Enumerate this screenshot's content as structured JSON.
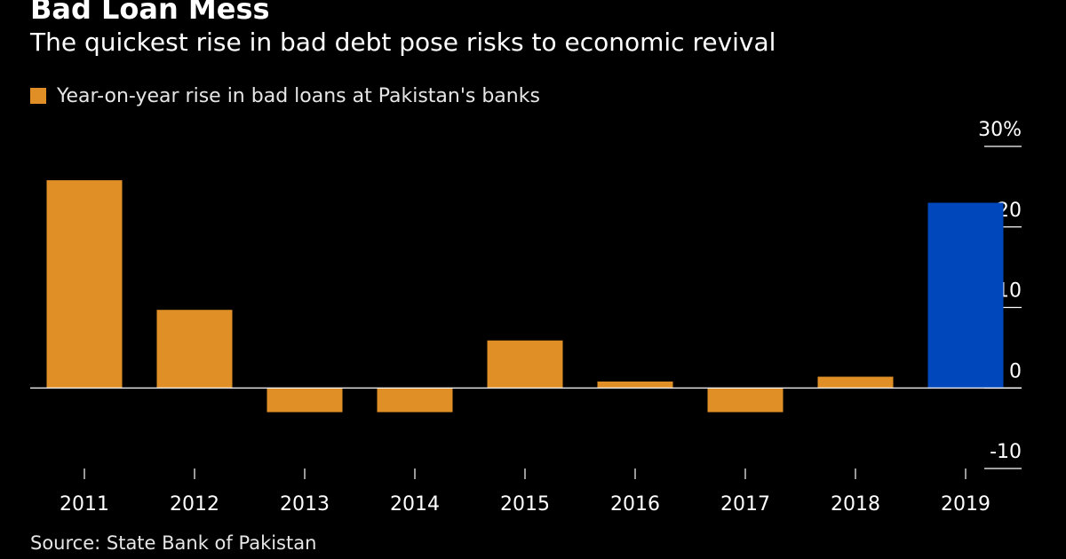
{
  "chart_data": {
    "type": "bar",
    "title": "Bad Loan Mess",
    "subtitle": "The quickest rise in bad debt pose risks to economic revival",
    "series": [
      {
        "name": "Year-on-year rise in bad loans at Pakistan's banks",
        "values": [
          25.8,
          9.7,
          -3.0,
          -3.0,
          5.9,
          0.8,
          -3.0,
          1.4,
          23.0
        ]
      }
    ],
    "categories": [
      "2011",
      "2012",
      "2013",
      "2014",
      "2015",
      "2016",
      "2017",
      "2018",
      "2019"
    ],
    "highlight_category": "2019",
    "ylim": [
      -10,
      30
    ],
    "yticks": [
      -10,
      0,
      10,
      20,
      30
    ],
    "ytick_labels": [
      "-10",
      "0",
      "10",
      "20",
      "30%"
    ],
    "xlabel": "",
    "ylabel": "",
    "y_axis_position": "right",
    "legend_position": "top-left",
    "grid": false,
    "source": "Source: State Bank of Pakistan"
  },
  "colors": {
    "background": "#000000",
    "bar": "#E08F26",
    "highlight": "#0047BB",
    "axis": "#ffffff",
    "text": "#ffffff"
  }
}
